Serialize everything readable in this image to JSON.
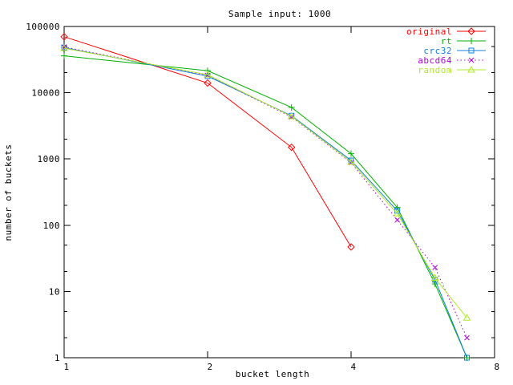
{
  "window": {
    "description": "gnuplot line chart"
  },
  "chart_data": {
    "type": "line",
    "title": "Sample input: 1000",
    "xlabel": "bucket length",
    "ylabel": "number of buckets",
    "x_scale": "log2",
    "y_scale": "log10",
    "xlim": [
      1,
      8
    ],
    "ylim": [
      1,
      100000
    ],
    "grid": false,
    "legend_position": "top-right-inside",
    "x_ticks": [
      1,
      2,
      4,
      8
    ],
    "x_tick_labels": [
      "1",
      "2",
      "4",
      "8"
    ],
    "y_ticks": [
      1,
      10,
      100,
      1000,
      10000,
      100000
    ],
    "y_tick_labels": [
      "1",
      "10",
      "100",
      "1000",
      "10000",
      "100000"
    ],
    "y_minor_tick_multipliers": [
      2,
      5
    ],
    "series": [
      {
        "name": "original",
        "color": "#ff0000",
        "marker": "diamond",
        "line": "solid",
        "x": [
          1,
          2,
          3,
          4
        ],
        "y": [
          70000,
          14000,
          1500,
          47
        ]
      },
      {
        "name": "rt",
        "color": "#00b000",
        "marker": "plus",
        "line": "solid",
        "x": [
          1,
          2,
          3,
          4,
          5,
          6,
          7
        ],
        "y": [
          36000,
          21500,
          6000,
          1200,
          185,
          13,
          1
        ]
      },
      {
        "name": "crc32",
        "color": "#1080e0",
        "marker": "square",
        "line": "solid",
        "x": [
          1,
          2,
          3,
          4,
          5,
          6,
          7
        ],
        "y": [
          48000,
          17800,
          4500,
          950,
          165,
          15,
          1
        ]
      },
      {
        "name": "abcd64",
        "color": "#b000e0",
        "marker": "x",
        "line": "dotted",
        "x": [
          1,
          2,
          3,
          4,
          5,
          6,
          7
        ],
        "y": [
          49000,
          18300,
          4300,
          880,
          120,
          23,
          2
        ]
      },
      {
        "name": "random",
        "color": "#b0e828",
        "marker": "triangle",
        "line": "solid",
        "x": [
          1,
          2,
          3,
          4,
          5,
          6,
          7
        ],
        "y": [
          47000,
          18700,
          4400,
          900,
          150,
          16,
          4
        ]
      }
    ]
  }
}
